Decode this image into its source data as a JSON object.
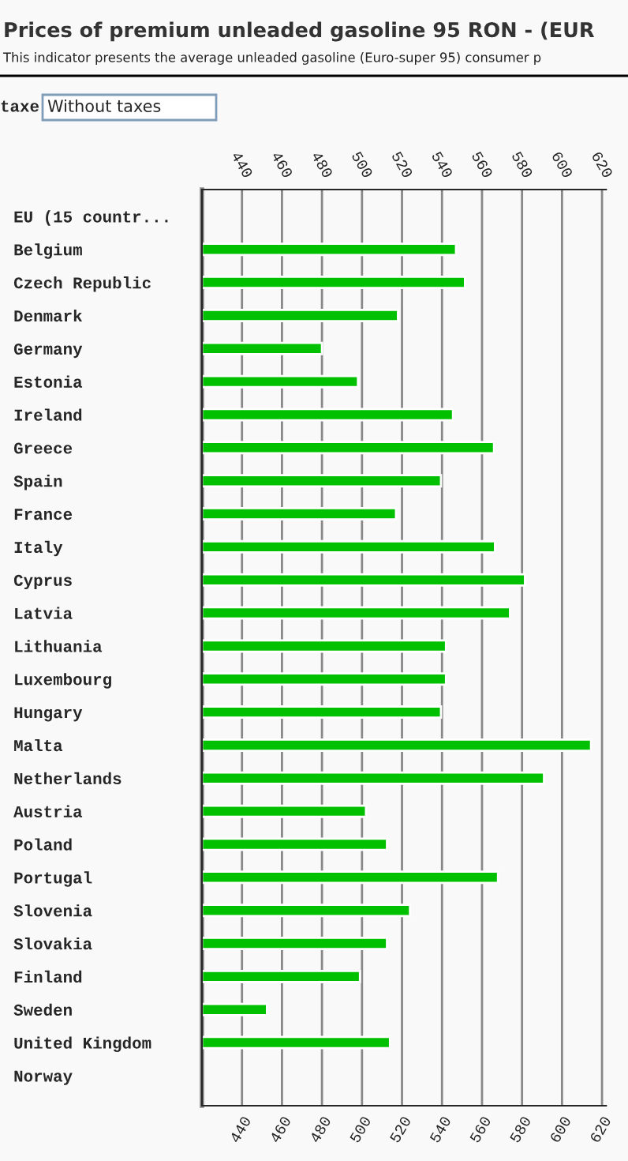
{
  "chart_data": {
    "type": "bar",
    "orientation": "horizontal",
    "title": "Prices of premium unleaded gasoline 95 RON - (EUR",
    "subtitle": "This indicator presents the average unleaded gasoline (Euro-super 95) consumer p",
    "annotations": [
      "taxe",
      "Without taxes"
    ],
    "categories": [
      "EU (15 countr...",
      "Belgium",
      "Czech Republic",
      "Denmark",
      "Germany",
      "Estonia",
      "Ireland",
      "Greece",
      "Spain",
      "France",
      "Italy",
      "Cyprus",
      "Latvia",
      "Lithuania",
      "Luxembourg",
      "Hungary",
      "Malta",
      "Netherlands",
      "Austria",
      "Poland",
      "Portugal",
      "Slovenia",
      "Slovakia",
      "Finland",
      "Sweden",
      "United Kingdom",
      "Norway"
    ],
    "values": [
      null,
      547,
      551.5,
      518,
      480,
      498,
      545.5,
      566,
      539.5,
      517,
      566.5,
      581.5,
      574,
      542,
      542,
      539.5,
      614.5,
      591,
      502,
      512.5,
      568,
      524,
      512.5,
      499,
      452.5,
      514,
      null
    ],
    "color": "#00c000",
    "xlim": [
      420,
      622
    ],
    "xticks": [
      440,
      460,
      480,
      500,
      520,
      540,
      560,
      580,
      600,
      620
    ],
    "x2lim": [
      420,
      622
    ],
    "x2ticks": [
      440,
      460,
      480,
      500,
      520,
      540,
      560,
      580,
      600,
      620
    ],
    "grid": "x",
    "legend": false
  }
}
